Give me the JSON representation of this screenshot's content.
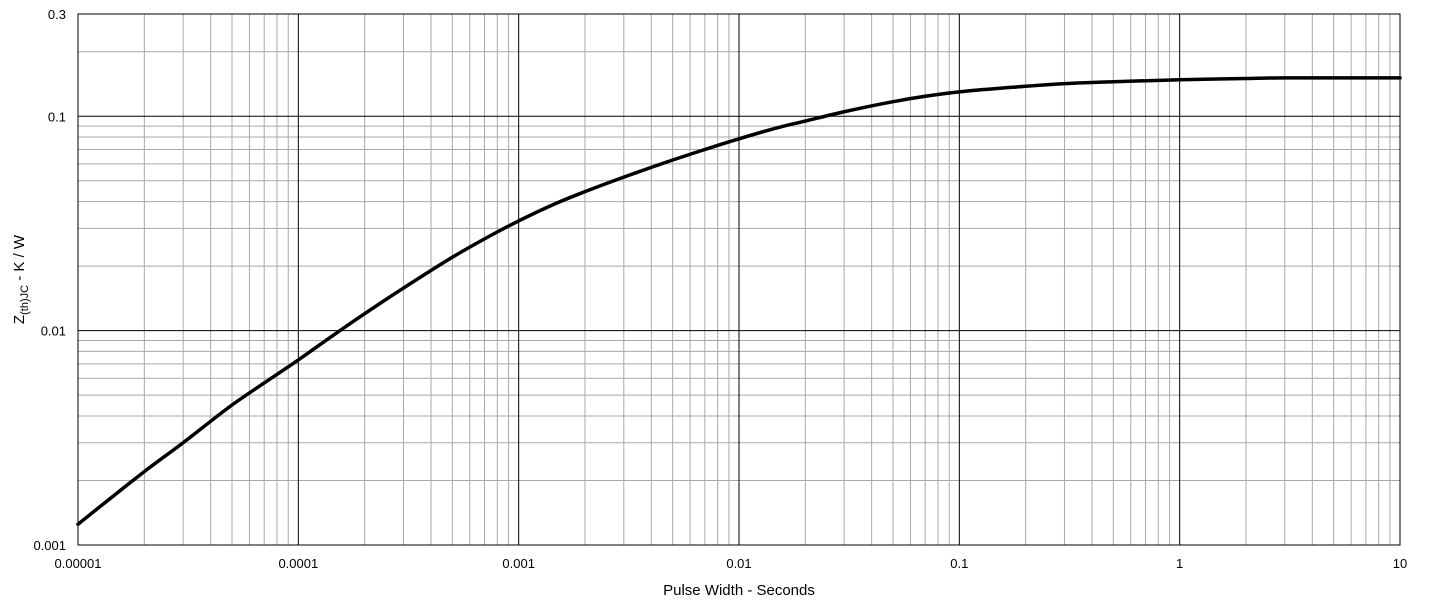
{
  "chart_data": {
    "type": "line",
    "title": "",
    "xlabel": "Pulse Width - Seconds",
    "ylabel": {
      "main": "Z",
      "subscript": "(th)JC",
      "suffix": " - K / W"
    },
    "x_scale": "log",
    "y_scale": "log",
    "xlim": [
      1e-05,
      10
    ],
    "ylim": [
      0.001,
      0.3
    ],
    "x_ticks": [
      1e-05,
      0.0001,
      0.001,
      0.01,
      0.1,
      1,
      10
    ],
    "x_tick_labels": [
      "0.00001",
      "0.0001",
      "0.001",
      "0.01",
      "0.1",
      "1",
      "10"
    ],
    "y_ticks": [
      0.001,
      0.01,
      0.1,
      0.3
    ],
    "y_tick_labels": [
      "0.001",
      "0.01",
      "0.1",
      "0.3"
    ],
    "grid": true,
    "series": [
      {
        "color": "#000000",
        "x": [
          1e-05,
          2e-05,
          3e-05,
          5e-05,
          7e-05,
          0.0001,
          0.00015,
          0.0002,
          0.0003,
          0.0005,
          0.0007,
          0.001,
          0.0015,
          0.002,
          0.003,
          0.005,
          0.007,
          0.01,
          0.015,
          0.02,
          0.03,
          0.05,
          0.07,
          0.1,
          0.2,
          0.3,
          0.5,
          1,
          2,
          3,
          5,
          10
        ],
        "y": [
          0.00125,
          0.0022,
          0.003,
          0.0045,
          0.0057,
          0.0073,
          0.0098,
          0.012,
          0.0158,
          0.022,
          0.0268,
          0.0325,
          0.0395,
          0.0445,
          0.052,
          0.0625,
          0.07,
          0.0785,
          0.0885,
          0.095,
          0.105,
          0.117,
          0.124,
          0.13,
          0.138,
          0.142,
          0.145,
          0.148,
          0.15,
          0.151,
          0.151,
          0.151
        ]
      }
    ]
  }
}
